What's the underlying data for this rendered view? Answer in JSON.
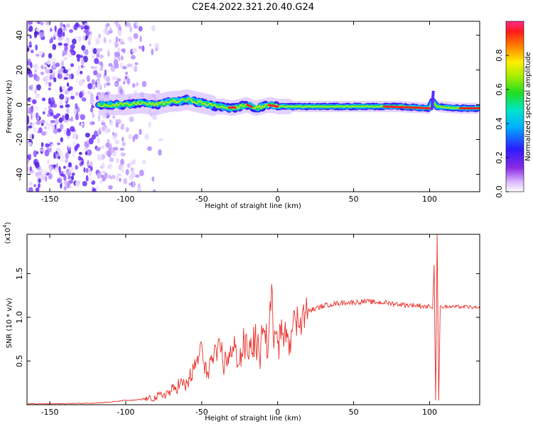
{
  "title": "C2E4.2022.321.20.40.G24",
  "colors": {
    "snr_line": "#e8302a",
    "frame": "#000000"
  },
  "chart_data": [
    {
      "type": "heatmap",
      "xlabel": "Height of straight line (km)",
      "ylabel": "Frequency (Hz)",
      "xlim": [
        -165,
        133
      ],
      "ylim": [
        -50,
        48
      ],
      "x_ticks": [
        -150,
        -100,
        -50,
        0,
        50,
        100
      ],
      "x_tick_labels": [
        "-150",
        "-100",
        "-50",
        "0",
        "50",
        "100"
      ],
      "y_ticks": [
        -40,
        -20,
        0,
        20,
        40
      ],
      "y_tick_labels": [
        "-40",
        "-20",
        "0",
        "20",
        "40"
      ],
      "colorbar": {
        "label": "Normalized spectral amplitude",
        "range": [
          0,
          1
        ],
        "ticks": [
          0.0,
          0.2,
          0.4,
          0.6,
          0.8
        ],
        "tick_labels": [
          "0.0",
          "0.2",
          "0.4",
          "0.6",
          "0.8"
        ],
        "colormap": "rainbow"
      },
      "ridge": {
        "description_points": [
          [
            -118,
            0
          ],
          [
            -110,
            0
          ],
          [
            -100,
            0
          ],
          [
            -90,
            1
          ],
          [
            -80,
            0
          ],
          [
            -70,
            2
          ],
          [
            -65,
            2
          ],
          [
            -60,
            3
          ],
          [
            -55,
            2
          ],
          [
            -50,
            1
          ],
          [
            -45,
            0
          ],
          [
            -40,
            -1
          ],
          [
            -35,
            -1
          ],
          [
            -30,
            -2
          ],
          [
            -25,
            -1
          ],
          [
            -20,
            0
          ],
          [
            -15,
            -2
          ],
          [
            -10,
            -1
          ],
          [
            -5,
            0
          ],
          [
            0,
            -1
          ],
          [
            10,
            -1
          ],
          [
            20,
            -1
          ],
          [
            40,
            -1
          ],
          [
            60,
            -1
          ],
          [
            80,
            -1
          ],
          [
            100,
            -2
          ],
          [
            102,
            2
          ],
          [
            105,
            -1
          ],
          [
            120,
            -2
          ],
          [
            133,
            -2
          ]
        ]
      }
    },
    {
      "type": "line",
      "xlabel": "Height of straight line (km)",
      "ylabel": "SNR (10 * v/v)",
      "y_scale_label": "(x10",
      "y_scale_exp": "4",
      "xlim": [
        -165,
        133
      ],
      "ylim": [
        0,
        1.95
      ],
      "x_ticks": [
        -150,
        -100,
        -50,
        0,
        50,
        100
      ],
      "x_tick_labels": [
        "-150",
        "-100",
        "-50",
        "0",
        "50",
        "100"
      ],
      "y_ticks": [
        0.5,
        1.0,
        1.5
      ],
      "y_tick_labels": [
        "0.5",
        "1.0",
        "1.5"
      ],
      "series": [
        {
          "x": [
            -165,
            -150,
            -130,
            -120,
            -110,
            -100,
            -95,
            -90,
            -85,
            -80,
            -75,
            -70,
            -67,
            -64,
            -61,
            -58,
            -55,
            -52,
            -50,
            -48,
            -45,
            -42,
            -40,
            -38,
            -35,
            -32,
            -30,
            -28,
            -25,
            -22,
            -20,
            -18,
            -15,
            -12,
            -10,
            -8,
            -6,
            -4,
            -3,
            -2,
            0,
            3,
            5,
            8,
            10,
            12,
            15,
            18,
            20,
            25,
            30,
            35,
            40,
            45,
            50,
            55,
            60,
            65,
            70,
            75,
            80,
            85,
            90,
            95,
            100,
            102,
            103,
            104,
            105,
            106,
            107,
            108,
            110,
            115,
            120,
            125,
            130,
            133
          ],
          "y": [
            0.01,
            0.01,
            0.015,
            0.02,
            0.03,
            0.05,
            0.05,
            0.06,
            0.07,
            0.08,
            0.12,
            0.15,
            0.2,
            0.25,
            0.2,
            0.3,
            0.4,
            0.55,
            0.7,
            0.35,
            0.45,
            0.55,
            0.5,
            0.7,
            0.45,
            0.6,
            0.55,
            0.65,
            0.5,
            0.7,
            0.6,
            0.65,
            0.75,
            0.55,
            0.8,
            0.7,
            0.75,
            1.38,
            0.8,
            0.85,
            0.7,
            0.8,
            0.95,
            0.75,
            0.9,
            0.95,
            1.0,
            1.05,
            1.07,
            1.1,
            1.13,
            1.15,
            1.16,
            1.17,
            1.17,
            1.18,
            1.18,
            1.17,
            1.17,
            1.16,
            1.15,
            1.14,
            1.14,
            1.13,
            1.12,
            1.1,
            1.6,
            0.05,
            1.95,
            0.05,
            1.12,
            1.12,
            1.12,
            1.12,
            1.12,
            1.12,
            1.11,
            1.1
          ]
        }
      ]
    }
  ]
}
